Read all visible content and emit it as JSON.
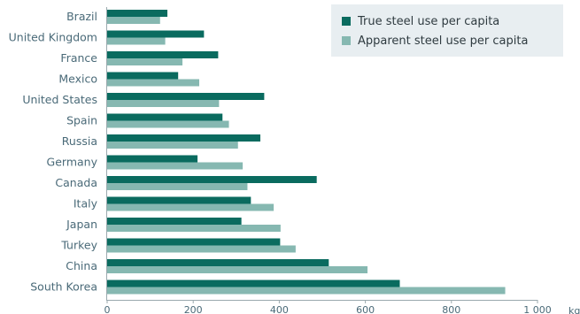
{
  "chart_data": {
    "type": "bar",
    "orientation": "horizontal",
    "categories": [
      "Brazil",
      "United Kingdom",
      "France",
      "Mexico",
      "United States",
      "Spain",
      "Russia",
      "Germany",
      "Canada",
      "Italy",
      "Japan",
      "Turkey",
      "China",
      "South Korea"
    ],
    "series": [
      {
        "name": "True steel use per capita",
        "color": "#0a6b5f",
        "values": [
          140,
          225,
          258,
          165,
          365,
          268,
          356,
          210,
          487,
          334,
          312,
          402,
          515,
          680
        ]
      },
      {
        "name": "Apparent steel use per capita",
        "color": "#86b8b1",
        "values": [
          123,
          135,
          175,
          214,
          260,
          283,
          304,
          315,
          326,
          387,
          403,
          438,
          605,
          925
        ]
      }
    ],
    "xlim": [
      0,
      1000
    ],
    "xticks": [
      0,
      200,
      400,
      600,
      800,
      1000
    ],
    "xtick_labels": [
      "0",
      "200",
      "400",
      "600",
      "800",
      "1 000"
    ],
    "unit_label": "kg",
    "legend_position": "top-right",
    "grid": false
  }
}
